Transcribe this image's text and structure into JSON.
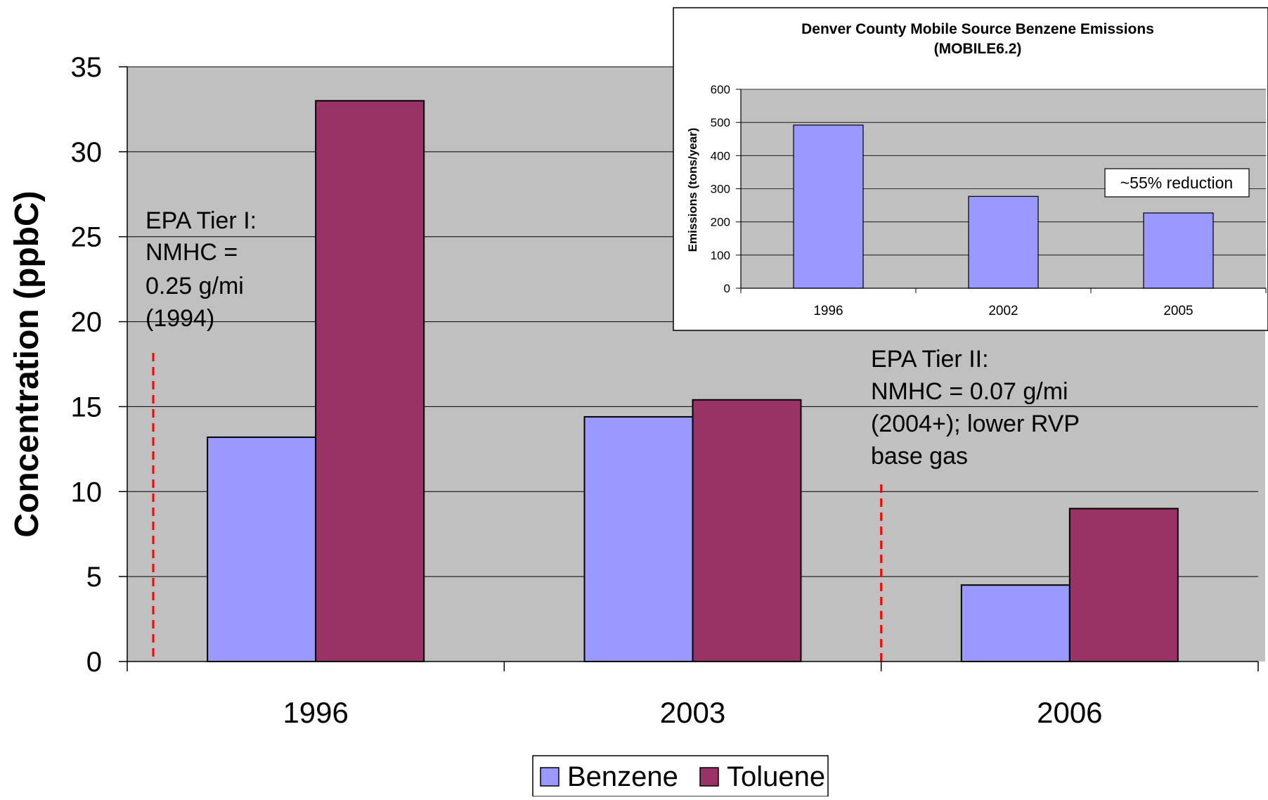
{
  "chart_data": [
    {
      "type": "bar",
      "title": "",
      "xlabel": "",
      "ylabel": "Concentration (ppbC)",
      "categories": [
        "1996",
        "2003",
        "2006"
      ],
      "series": [
        {
          "name": "Benzene",
          "values": [
            13.2,
            14.4,
            4.5
          ]
        },
        {
          "name": "Toluene",
          "values": [
            33.0,
            15.4,
            9.0
          ]
        }
      ],
      "ylim": [
        0,
        35
      ],
      "yticks": [
        0,
        5,
        10,
        15,
        20,
        25,
        30,
        35
      ],
      "grid": true,
      "legend": "bottom-center",
      "colors": {
        "Benzene": "#9999ff",
        "Toluene": "#993366",
        "plot_background": "#c0c0c0",
        "marker_lines": "#ff0000"
      },
      "annotations": [
        {
          "lines": [
            "EPA Tier I:",
            "NMHC =",
            "0.25 g/mi",
            "(1994)"
          ],
          "marker_between": [
            "start",
            "1996"
          ]
        },
        {
          "lines": [
            "EPA Tier II:",
            "NMHC = 0.07 g/mi",
            "(2004+); lower RVP",
            "base gas"
          ],
          "marker_between": [
            "2003",
            "2006"
          ]
        }
      ]
    },
    {
      "type": "bar",
      "title": "Denver County Mobile Source Benzene Emissions",
      "subtitle": "(MOBILE6.2)",
      "xlabel": "",
      "ylabel": "Emissions (tons/year)",
      "categories": [
        "1996",
        "2002",
        "2005"
      ],
      "series": [
        {
          "name": "",
          "values": [
            492,
            277,
            227
          ]
        }
      ],
      "ylim": [
        0,
        600
      ],
      "yticks": [
        0,
        100,
        200,
        300,
        400,
        500,
        600
      ],
      "grid": true,
      "colors": {
        "bars": "#9999ff",
        "plot_background": "#c0c0c0"
      },
      "annotation": "~55% reduction"
    }
  ]
}
